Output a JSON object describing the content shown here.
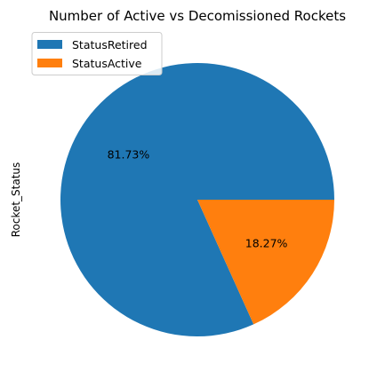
{
  "chart_data": {
    "type": "pie",
    "title": "Number of Active vs Decomissioned Rockets",
    "ylabel": "Rocket_Status",
    "categories": [
      "StatusRetired",
      "StatusActive"
    ],
    "values": [
      81.73,
      18.27
    ],
    "labels": [
      "81.73%",
      "18.27%"
    ],
    "colors": [
      "#1f77b4",
      "#ff7f0e"
    ],
    "legend_position": "top-left"
  }
}
